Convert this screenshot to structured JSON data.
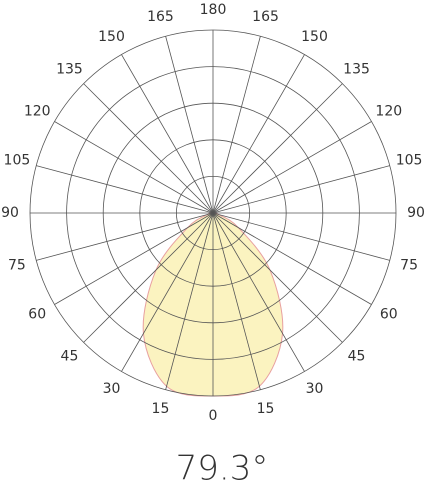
{
  "chart_data": {
    "type": "polar",
    "title": "79.3°",
    "theta": [
      -90,
      -75,
      -60,
      -45,
      -30,
      -15,
      0,
      15,
      30,
      45,
      60,
      75,
      90
    ],
    "series": [
      {
        "color": "#fbf3c0",
        "edge_color": "#e8a0a0",
        "values": [
          0,
          0.15,
          0.8,
          2.2,
          3.8,
          4.9,
          5,
          4.9,
          3.8,
          2.2,
          0.8,
          0.15,
          0
        ]
      }
    ],
    "rlim": [
      0,
      5
    ],
    "rticks": [
      1,
      2,
      3,
      4,
      5
    ],
    "thetaticks": [
      0,
      {
        "value": 15,
        "label": "15"
      },
      {
        "value": 30,
        "label": "30"
      },
      {
        "value": 45,
        "label": "45"
      },
      {
        "value": 60,
        "label": "60"
      },
      {
        "value": 75,
        "label": "75"
      },
      {
        "value": 90,
        "label": "90"
      },
      {
        "value": 105,
        "label": "105"
      },
      {
        "value": 120,
        "label": "120"
      },
      {
        "value": 135,
        "label": "135"
      },
      {
        "value": 150,
        "label": "150"
      },
      {
        "value": 165,
        "label": "165"
      },
      180,
      {
        "value": -165,
        "label": "165"
      },
      {
        "value": -150,
        "label": "150"
      },
      {
        "value": -135,
        "label": "135"
      },
      {
        "value": -120,
        "label": "120"
      },
      {
        "value": -105,
        "label": "105"
      },
      {
        "value": -90,
        "label": "90"
      },
      {
        "value": -75,
        "label": "75"
      },
      {
        "value": -60,
        "label": "60"
      },
      {
        "value": -45,
        "label": "45"
      },
      {
        "value": -30,
        "label": "30"
      },
      {
        "value": -15,
        "label": "15"
      }
    ],
    "grid": true
  }
}
